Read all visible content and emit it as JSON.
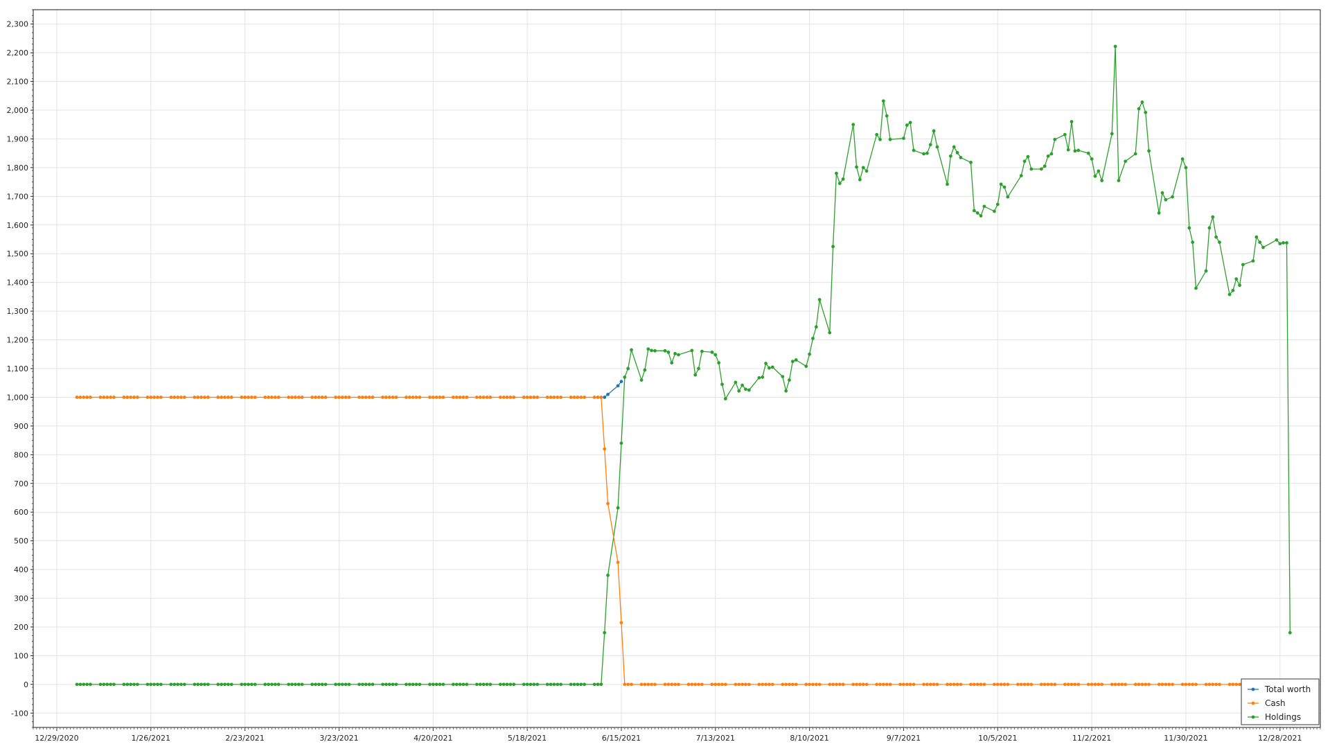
{
  "chart_data": {
    "type": "line",
    "title": "",
    "xlabel": "",
    "ylabel": "",
    "ylim": [
      -150,
      2350
    ],
    "xlim": [
      "2020-12-22",
      "2022-01-09"
    ],
    "y_ticks": [
      -100,
      0,
      100,
      200,
      300,
      400,
      500,
      600,
      700,
      800,
      900,
      1000,
      1100,
      1200,
      1300,
      1400,
      1500,
      1600,
      1700,
      1800,
      1900,
      2000,
      2100,
      2200,
      2300
    ],
    "y_tick_labels": [
      "-100",
      "0",
      "100",
      "200",
      "300",
      "400",
      "500",
      "600",
      "700",
      "800",
      "900",
      "1,000",
      "1,100",
      "1,200",
      "1,300",
      "1,400",
      "1,500",
      "1,600",
      "1,700",
      "1,800",
      "1,900",
      "2,000",
      "2,100",
      "2,200",
      "2,300"
    ],
    "x_ticks": [
      "2020-12-29",
      "2021-01-26",
      "2021-02-23",
      "2021-03-23",
      "2021-04-20",
      "2021-05-18",
      "2021-06-15",
      "2021-07-13",
      "2021-08-10",
      "2021-09-07",
      "2021-10-05",
      "2021-11-02",
      "2021-11-30",
      "2021-12-28"
    ],
    "x_tick_labels": [
      "12/29/2020",
      "1/26/2021",
      "2/23/2021",
      "3/23/2021",
      "4/20/2021",
      "5/18/2021",
      "6/15/2021",
      "7/13/2021",
      "8/10/2021",
      "9/7/2021",
      "10/5/2021",
      "11/2/2021",
      "11/30/2021",
      "12/28/2021"
    ],
    "grid": true,
    "legend_position": "bottom-right",
    "series": [
      {
        "name": "Total worth",
        "color": "#1f77b4",
        "points": [
          {
            "x": "2021-06-10",
            "y": 1000
          },
          {
            "x": "2021-06-11",
            "y": 1010
          },
          {
            "x": "2021-06-14",
            "y": 1040
          },
          {
            "x": "2021-06-15",
            "y": 1055
          }
        ]
      },
      {
        "name": "Cash",
        "color": "#ff7f0e",
        "points": [
          {
            "x": "2021-01-04",
            "y": 1000
          },
          {
            "x": "2021-06-09",
            "y": 1000
          },
          {
            "x": "2021-06-10",
            "y": 820
          },
          {
            "x": "2021-06-11",
            "y": 630
          },
          {
            "x": "2021-06-14",
            "y": 425
          },
          {
            "x": "2021-06-15",
            "y": 215
          },
          {
            "x": "2021-06-16",
            "y": 0
          },
          {
            "x": "2021-12-29",
            "y": 0
          }
        ]
      },
      {
        "name": "Holdings",
        "color": "#2ca02c",
        "points": [
          {
            "x": "2021-01-04",
            "y": 0
          },
          {
            "x": "2021-06-09",
            "y": 0
          },
          {
            "x": "2021-06-10",
            "y": 180
          },
          {
            "x": "2021-06-11",
            "y": 380
          },
          {
            "x": "2021-06-14",
            "y": 615
          },
          {
            "x": "2021-06-15",
            "y": 840
          },
          {
            "x": "2021-06-16",
            "y": 1070
          },
          {
            "x": "2021-06-17",
            "y": 1100
          },
          {
            "x": "2021-06-18",
            "y": 1165
          },
          {
            "x": "2021-06-21",
            "y": 1060
          },
          {
            "x": "2021-06-22",
            "y": 1095
          },
          {
            "x": "2021-06-23",
            "y": 1168
          },
          {
            "x": "2021-06-24",
            "y": 1163
          },
          {
            "x": "2021-06-25",
            "y": 1162
          },
          {
            "x": "2021-06-28",
            "y": 1162
          },
          {
            "x": "2021-06-29",
            "y": 1157
          },
          {
            "x": "2021-06-30",
            "y": 1120
          },
          {
            "x": "2021-07-01",
            "y": 1152
          },
          {
            "x": "2021-07-02",
            "y": 1148
          },
          {
            "x": "2021-07-06",
            "y": 1163
          },
          {
            "x": "2021-07-07",
            "y": 1078
          },
          {
            "x": "2021-07-08",
            "y": 1100
          },
          {
            "x": "2021-07-09",
            "y": 1160
          },
          {
            "x": "2021-07-12",
            "y": 1157
          },
          {
            "x": "2021-07-13",
            "y": 1148
          },
          {
            "x": "2021-07-14",
            "y": 1120
          },
          {
            "x": "2021-07-15",
            "y": 1045
          },
          {
            "x": "2021-07-16",
            "y": 995
          },
          {
            "x": "2021-07-19",
            "y": 1052
          },
          {
            "x": "2021-07-20",
            "y": 1022
          },
          {
            "x": "2021-07-21",
            "y": 1042
          },
          {
            "x": "2021-07-22",
            "y": 1028
          },
          {
            "x": "2021-07-23",
            "y": 1025
          },
          {
            "x": "2021-07-26",
            "y": 1068
          },
          {
            "x": "2021-07-27",
            "y": 1070
          },
          {
            "x": "2021-07-28",
            "y": 1118
          },
          {
            "x": "2021-07-29",
            "y": 1102
          },
          {
            "x": "2021-07-30",
            "y": 1105
          },
          {
            "x": "2021-08-02",
            "y": 1072
          },
          {
            "x": "2021-08-03",
            "y": 1022
          },
          {
            "x": "2021-08-04",
            "y": 1060
          },
          {
            "x": "2021-08-05",
            "y": 1125
          },
          {
            "x": "2021-08-06",
            "y": 1130
          },
          {
            "x": "2021-08-09",
            "y": 1108
          },
          {
            "x": "2021-08-10",
            "y": 1150
          },
          {
            "x": "2021-08-11",
            "y": 1205
          },
          {
            "x": "2021-08-12",
            "y": 1245
          },
          {
            "x": "2021-08-13",
            "y": 1340
          },
          {
            "x": "2021-08-16",
            "y": 1225
          },
          {
            "x": "2021-08-17",
            "y": 1525
          },
          {
            "x": "2021-08-18",
            "y": 1780
          },
          {
            "x": "2021-08-19",
            "y": 1745
          },
          {
            "x": "2021-08-20",
            "y": 1760
          },
          {
            "x": "2021-08-23",
            "y": 1950
          },
          {
            "x": "2021-08-24",
            "y": 1802
          },
          {
            "x": "2021-08-25",
            "y": 1758
          },
          {
            "x": "2021-08-26",
            "y": 1800
          },
          {
            "x": "2021-08-27",
            "y": 1788
          },
          {
            "x": "2021-08-30",
            "y": 1915
          },
          {
            "x": "2021-08-31",
            "y": 1898
          },
          {
            "x": "2021-09-01",
            "y": 2032
          },
          {
            "x": "2021-09-02",
            "y": 1980
          },
          {
            "x": "2021-09-03",
            "y": 1898
          },
          {
            "x": "2021-09-07",
            "y": 1902
          },
          {
            "x": "2021-09-08",
            "y": 1948
          },
          {
            "x": "2021-09-09",
            "y": 1957
          },
          {
            "x": "2021-09-10",
            "y": 1860
          },
          {
            "x": "2021-09-13",
            "y": 1848
          },
          {
            "x": "2021-09-14",
            "y": 1850
          },
          {
            "x": "2021-09-15",
            "y": 1880
          },
          {
            "x": "2021-09-16",
            "y": 1928
          },
          {
            "x": "2021-09-17",
            "y": 1872
          },
          {
            "x": "2021-09-20",
            "y": 1742
          },
          {
            "x": "2021-09-21",
            "y": 1840
          },
          {
            "x": "2021-09-22",
            "y": 1872
          },
          {
            "x": "2021-09-23",
            "y": 1852
          },
          {
            "x": "2021-09-24",
            "y": 1835
          },
          {
            "x": "2021-09-27",
            "y": 1818
          },
          {
            "x": "2021-09-28",
            "y": 1650
          },
          {
            "x": "2021-09-29",
            "y": 1642
          },
          {
            "x": "2021-09-30",
            "y": 1632
          },
          {
            "x": "2021-10-01",
            "y": 1665
          },
          {
            "x": "2021-10-04",
            "y": 1648
          },
          {
            "x": "2021-10-05",
            "y": 1672
          },
          {
            "x": "2021-10-06",
            "y": 1742
          },
          {
            "x": "2021-10-07",
            "y": 1732
          },
          {
            "x": "2021-10-08",
            "y": 1698
          },
          {
            "x": "2021-10-12",
            "y": 1772
          },
          {
            "x": "2021-10-13",
            "y": 1822
          },
          {
            "x": "2021-10-14",
            "y": 1838
          },
          {
            "x": "2021-10-15",
            "y": 1795
          },
          {
            "x": "2021-10-18",
            "y": 1795
          },
          {
            "x": "2021-10-19",
            "y": 1805
          },
          {
            "x": "2021-10-20",
            "y": 1840
          },
          {
            "x": "2021-10-21",
            "y": 1848
          },
          {
            "x": "2021-10-22",
            "y": 1898
          },
          {
            "x": "2021-10-25",
            "y": 1915
          },
          {
            "x": "2021-10-26",
            "y": 1862
          },
          {
            "x": "2021-10-27",
            "y": 1960
          },
          {
            "x": "2021-10-28",
            "y": 1858
          },
          {
            "x": "2021-10-29",
            "y": 1860
          },
          {
            "x": "2021-11-01",
            "y": 1850
          },
          {
            "x": "2021-11-02",
            "y": 1830
          },
          {
            "x": "2021-11-03",
            "y": 1770
          },
          {
            "x": "2021-11-04",
            "y": 1788
          },
          {
            "x": "2021-11-05",
            "y": 1755
          },
          {
            "x": "2021-11-08",
            "y": 1918
          },
          {
            "x": "2021-11-09",
            "y": 2222
          },
          {
            "x": "2021-11-10",
            "y": 1755
          },
          {
            "x": "2021-11-12",
            "y": 1822
          },
          {
            "x": "2021-11-15",
            "y": 1848
          },
          {
            "x": "2021-11-16",
            "y": 2005
          },
          {
            "x": "2021-11-17",
            "y": 2028
          },
          {
            "x": "2021-11-18",
            "y": 1992
          },
          {
            "x": "2021-11-19",
            "y": 1858
          },
          {
            "x": "2021-11-22",
            "y": 1642
          },
          {
            "x": "2021-11-23",
            "y": 1712
          },
          {
            "x": "2021-11-24",
            "y": 1688
          },
          {
            "x": "2021-11-26",
            "y": 1698
          },
          {
            "x": "2021-11-29",
            "y": 1830
          },
          {
            "x": "2021-11-30",
            "y": 1800
          },
          {
            "x": "2021-12-01",
            "y": 1590
          },
          {
            "x": "2021-12-02",
            "y": 1540
          },
          {
            "x": "2021-12-03",
            "y": 1380
          },
          {
            "x": "2021-12-06",
            "y": 1440
          },
          {
            "x": "2021-12-07",
            "y": 1590
          },
          {
            "x": "2021-12-08",
            "y": 1628
          },
          {
            "x": "2021-12-09",
            "y": 1558
          },
          {
            "x": "2021-12-10",
            "y": 1540
          },
          {
            "x": "2021-12-13",
            "y": 1358
          },
          {
            "x": "2021-12-14",
            "y": 1372
          },
          {
            "x": "2021-12-15",
            "y": 1412
          },
          {
            "x": "2021-12-16",
            "y": 1390
          },
          {
            "x": "2021-12-17",
            "y": 1462
          },
          {
            "x": "2021-12-20",
            "y": 1475
          },
          {
            "x": "2021-12-21",
            "y": 1558
          },
          {
            "x": "2021-12-22",
            "y": 1540
          },
          {
            "x": "2021-12-23",
            "y": 1522
          },
          {
            "x": "2021-12-27",
            "y": 1548
          },
          {
            "x": "2021-12-28",
            "y": 1535
          },
          {
            "x": "2021-12-29",
            "y": 1538
          },
          {
            "x": "2021-12-30",
            "y": 1538
          },
          {
            "x": "2021-12-31",
            "y": 180
          }
        ]
      }
    ]
  }
}
